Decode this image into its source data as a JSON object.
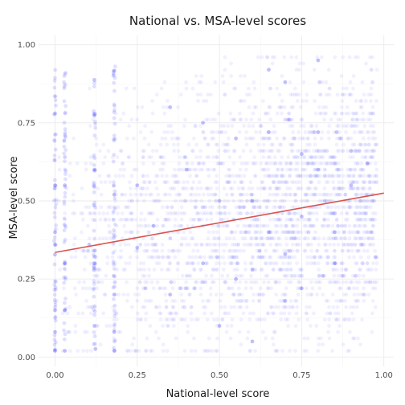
{
  "chart_data": {
    "type": "scatter",
    "title": "National vs. MSA-level scores",
    "xlabel": "National-level score",
    "ylabel": "MSA-level score",
    "xlim": [
      -0.05,
      1.03
    ],
    "ylim": [
      -0.03,
      1.03
    ],
    "x_ticks": [
      0.0,
      0.25,
      0.5,
      0.75,
      1.0
    ],
    "x_tick_labels": [
      "0.00",
      "0.25",
      "0.50",
      "0.75",
      "1.00"
    ],
    "y_ticks": [
      0.0,
      0.25,
      0.5,
      0.75,
      1.0
    ],
    "y_tick_labels": [
      "0.00",
      "0.25",
      "0.50",
      "0.75",
      "1.00"
    ],
    "grid": true,
    "point_color": "#0000ff",
    "point_alpha": 0.06,
    "trend_color": "#d9534f",
    "trend_line": {
      "x": [
        0.0,
        1.0
      ],
      "y": [
        0.335,
        0.525
      ]
    },
    "sample_points": {
      "x": [
        0.0,
        0.0,
        0.0,
        0.0,
        0.0,
        0.0,
        0.0,
        0.03,
        0.03,
        0.03,
        0.03,
        0.12,
        0.12,
        0.12,
        0.18,
        0.18,
        0.18,
        0.18,
        0.25,
        0.3,
        0.35,
        0.4,
        0.45,
        0.5,
        0.55,
        0.6,
        0.65,
        0.7,
        0.75,
        0.8,
        0.85,
        0.9,
        0.95,
        0.5,
        0.6,
        0.7,
        0.8,
        0.55,
        0.65,
        0.75,
        0.85,
        0.45,
        0.35,
        0.25,
        0.6,
        0.7,
        0.8,
        0.65,
        0.75
      ],
      "y": [
        0.02,
        0.08,
        0.15,
        0.36,
        0.4,
        0.55,
        0.78,
        0.02,
        0.15,
        0.3,
        0.55,
        0.1,
        0.3,
        0.6,
        0.02,
        0.08,
        0.2,
        0.52,
        0.35,
        0.42,
        0.2,
        0.6,
        0.3,
        0.5,
        0.7,
        0.28,
        0.72,
        0.18,
        0.45,
        0.72,
        0.4,
        0.55,
        0.62,
        0.1,
        0.05,
        0.88,
        0.95,
        0.25,
        0.4,
        0.65,
        0.3,
        0.75,
        0.8,
        0.55,
        0.5,
        0.33,
        0.6,
        0.92,
        0.22
      ]
    }
  }
}
